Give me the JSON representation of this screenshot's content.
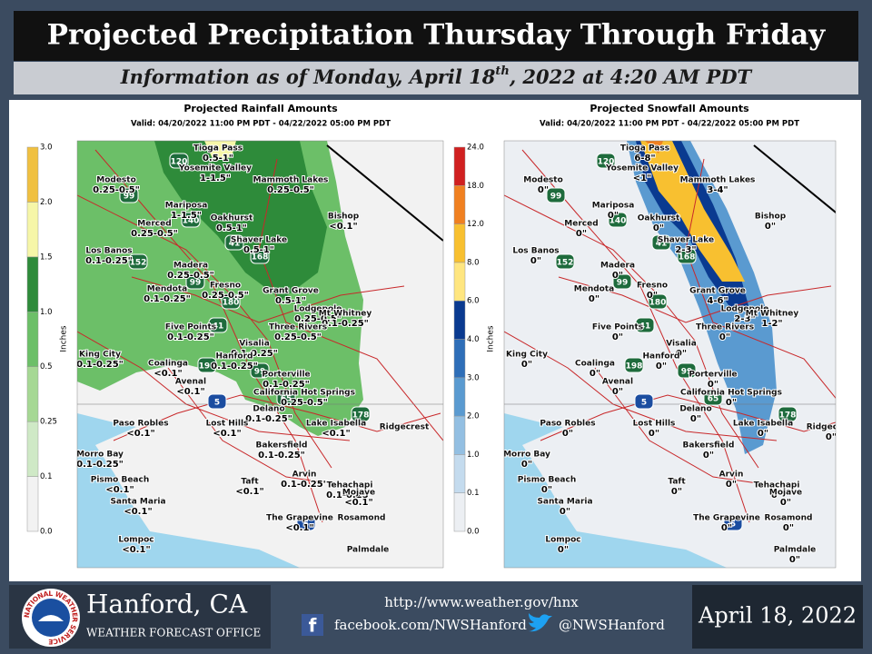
{
  "header": {
    "title": "Projected Precipitation Thursday Through Friday",
    "subtitle": {
      "before": "Information as of Monday, April 18",
      "sup": "th",
      "after": ", 2022 at 4:20 AM PDT"
    }
  },
  "maps": [
    {
      "title": "Projected Rainfall Amounts",
      "valid": "Valid: 04/20/2022 11:00 PM PDT - 04/22/2022 05:00 PM PDT",
      "units": "Inches",
      "scale": [
        "0.0",
        "0.1",
        "0.25",
        "0.5",
        "1.0",
        "1.5",
        "2.0",
        "3.0"
      ],
      "colors": [
        "#f2f2f2",
        "#cfe9c6",
        "#a6d894",
        "#6cbf68",
        "#2e8b3a",
        "#f6f6a8",
        "#f0c040"
      ]
    },
    {
      "title": "Projected Snowfall Amounts",
      "valid": "Valid: 04/20/2022 11:00 PM PDT - 04/22/2022 05:00 PM PDT",
      "units": "Inches",
      "scale": [
        "0.0",
        "0.1",
        "1.0",
        "2.0",
        "3.0",
        "4.0",
        "6.0",
        "8.0",
        "12.0",
        "18.0",
        "24.0"
      ],
      "colors": [
        "#eceff3",
        "#c4dbee",
        "#93bfe2",
        "#5a9ad0",
        "#2e6eb8",
        "#0a3a90",
        "#ffe680",
        "#f8c030",
        "#f08020",
        "#d02020"
      ]
    }
  ],
  "places": [
    {
      "name": "Tioga Pass",
      "amounts": [
        "0.5-1\"",
        "6-8\""
      ]
    },
    {
      "name": "Yosemite Valley",
      "amounts": [
        "1-1.5\"",
        "<1\""
      ]
    },
    {
      "name": "Mammoth Lakes",
      "amounts": [
        "0.25-0.5\"",
        "3-4\""
      ]
    },
    {
      "name": "Modesto",
      "amounts": [
        "0.25-0.5\"",
        "0\""
      ]
    },
    {
      "name": "Bishop",
      "amounts": [
        "<0.1\"",
        "0\""
      ]
    },
    {
      "name": "Mariposa",
      "amounts": [
        "1-1.5\"",
        "0\""
      ]
    },
    {
      "name": "Merced",
      "amounts": [
        "0.25-0.5\"",
        "0\""
      ]
    },
    {
      "name": "Oakhurst",
      "amounts": [
        "0.5-1\"",
        "0\""
      ]
    },
    {
      "name": "Shaver Lake",
      "amounts": [
        "0.5-1\"",
        "2-3\""
      ]
    },
    {
      "name": "Los Banos",
      "amounts": [
        "0.1-0.25\"",
        "0\""
      ]
    },
    {
      "name": "Madera",
      "amounts": [
        "0.25-0.5\"",
        "0\""
      ]
    },
    {
      "name": "Fresno",
      "amounts": [
        "0.25-0.5\"",
        "0\""
      ]
    },
    {
      "name": "Mendota",
      "amounts": [
        "0.1-0.25\"",
        "0\""
      ]
    },
    {
      "name": "Grant Grove",
      "amounts": [
        "0.5-1\"",
        "4-6\""
      ]
    },
    {
      "name": "Lodgepole",
      "amounts": [
        "0.25-0.5\"",
        "2-3\""
      ]
    },
    {
      "name": "Mt Whitney",
      "amounts": [
        "0.1-0.25\"",
        "1-2\""
      ]
    },
    {
      "name": "Three Rivers",
      "amounts": [
        "0.25-0.5\"",
        "0\""
      ]
    },
    {
      "name": "Five Points",
      "amounts": [
        "0.1-0.25\"",
        "0\""
      ]
    },
    {
      "name": "Visalia",
      "amounts": [
        "0.1-0.25\"",
        "0\""
      ]
    },
    {
      "name": "Hanford",
      "amounts": [
        "0.1-0.25\"",
        "0\""
      ]
    },
    {
      "name": "King City",
      "amounts": [
        "0.1-0.25\"",
        "0\""
      ]
    },
    {
      "name": "Coalinga",
      "amounts": [
        "<0.1\"",
        "0\""
      ]
    },
    {
      "name": "Porterville",
      "amounts": [
        "0.1-0.25\"",
        "0\""
      ]
    },
    {
      "name": "Avenal",
      "amounts": [
        "<0.1\"",
        "0\""
      ]
    },
    {
      "name": "California Hot Springs",
      "amounts": [
        "0.25-0.5\"",
        "0\""
      ]
    },
    {
      "name": "Delano",
      "amounts": [
        "0.1-0.25\"",
        "0\""
      ]
    },
    {
      "name": "Paso Robles",
      "amounts": [
        "<0.1\"",
        "0\""
      ]
    },
    {
      "name": "Lost Hills",
      "amounts": [
        "<0.1\"",
        "0\""
      ]
    },
    {
      "name": "Lake Isabella",
      "amounts": [
        "<0.1\"",
        "0\""
      ]
    },
    {
      "name": "Ridgecrest",
      "amounts": [
        null,
        "0\""
      ]
    },
    {
      "name": "Morro Bay",
      "amounts": [
        "0.1-0.25\"",
        "0\""
      ]
    },
    {
      "name": "Bakersfield",
      "amounts": [
        "0.1-0.25\"",
        "0\""
      ]
    },
    {
      "name": "Pismo Beach",
      "amounts": [
        "<0.1\"",
        "0\""
      ]
    },
    {
      "name": "Taft",
      "amounts": [
        "<0.1\"",
        "0\""
      ]
    },
    {
      "name": "Arvin",
      "amounts": [
        "0.1-0.25\"",
        "0\""
      ]
    },
    {
      "name": "Tehachapi",
      "amounts": [
        "0.1-0.25\"",
        "0\""
      ]
    },
    {
      "name": "Mojave",
      "amounts": [
        "<0.1\"",
        "0\""
      ]
    },
    {
      "name": "Santa Maria",
      "amounts": [
        "<0.1\"",
        "0\""
      ]
    },
    {
      "name": "The Grapevine",
      "amounts": [
        "<0.1\"",
        "0\""
      ]
    },
    {
      "name": "Rosamond",
      "amounts": [
        null,
        "0\""
      ]
    },
    {
      "name": "Lompoc",
      "amounts": [
        "<0.1\"",
        "0\""
      ]
    },
    {
      "name": "Palmdale",
      "amounts": [
        null,
        "0\""
      ]
    }
  ],
  "highways": [
    "120",
    "99",
    "140",
    "41",
    "168",
    "152",
    "99",
    "180",
    "41",
    "198",
    "99",
    "5",
    "65",
    "178",
    "5"
  ],
  "footer": {
    "logo": "NATIONAL WEATHER SERVICE",
    "office": "Hanford, CA",
    "office_type": "WEATHER FORECAST OFFICE",
    "url": "http://www.weather.gov/hnx",
    "facebook": "facebook.com/NWSHanford",
    "twitter": "@NWSHanford",
    "date": "April 18, 2022"
  }
}
